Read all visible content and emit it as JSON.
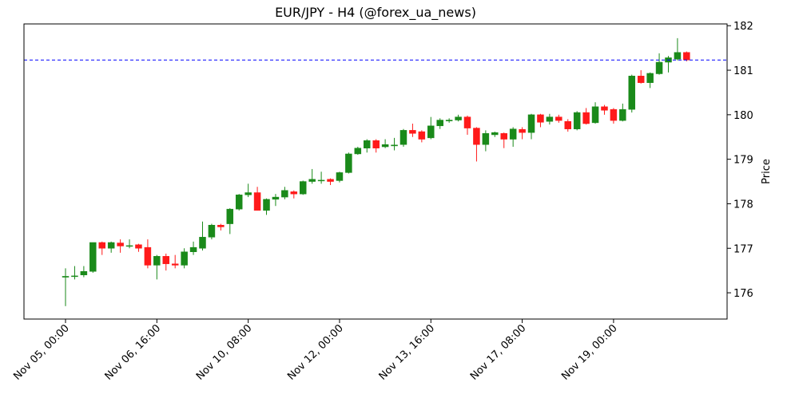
{
  "chart_data": {
    "type": "candlestick",
    "title": "EUR/JPY - H4 (@forex_ua_news)",
    "y_label": "Price",
    "categories": [
      "Nov 05, 00:00",
      null,
      null,
      null,
      null,
      null,
      null,
      null,
      null,
      null,
      "Nov 06, 16:00",
      null,
      null,
      null,
      null,
      null,
      null,
      null,
      null,
      null,
      "Nov 10, 08:00",
      null,
      null,
      null,
      null,
      null,
      null,
      null,
      null,
      null,
      "Nov 12, 00:00",
      null,
      null,
      null,
      null,
      null,
      null,
      null,
      null,
      null,
      "Nov 13, 16:00",
      null,
      null,
      null,
      null,
      null,
      null,
      null,
      null,
      null,
      "Nov 17, 08:00",
      null,
      null,
      null,
      null,
      null,
      null,
      null,
      null,
      null,
      "Nov 19, 00:00",
      null,
      null,
      null,
      null,
      null,
      null,
      null,
      null
    ],
    "open": [
      176.35,
      176.37,
      176.4,
      176.48,
      177.13,
      177.0,
      177.12,
      177.05,
      177.08,
      177.02,
      176.62,
      176.82,
      176.65,
      176.62,
      176.92,
      177.0,
      177.25,
      177.52,
      177.55,
      177.88,
      178.2,
      178.25,
      177.85,
      178.1,
      178.15,
      178.27,
      178.22,
      178.5,
      178.52,
      178.55,
      178.52,
      178.7,
      179.12,
      179.25,
      179.42,
      179.28,
      179.3,
      179.33,
      179.65,
      179.62,
      179.48,
      179.75,
      179.86,
      179.88,
      179.95,
      179.7,
      179.33,
      179.55,
      179.58,
      179.45,
      179.67,
      179.6,
      180.0,
      179.85,
      179.95,
      179.85,
      179.68,
      180.05,
      179.82,
      180.18,
      180.12,
      179.87,
      180.12,
      180.87,
      180.72,
      180.92,
      181.18,
      181.25,
      181.4
    ],
    "high": [
      176.55,
      176.6,
      176.6,
      177.13,
      177.15,
      177.15,
      177.2,
      177.2,
      177.1,
      177.2,
      176.85,
      176.88,
      176.85,
      177.0,
      177.15,
      177.6,
      177.55,
      177.55,
      177.9,
      178.22,
      178.45,
      178.38,
      178.12,
      178.22,
      178.38,
      178.3,
      178.52,
      178.78,
      178.72,
      178.57,
      178.72,
      179.15,
      179.28,
      179.45,
      179.45,
      179.45,
      179.48,
      179.68,
      179.8,
      179.65,
      179.95,
      179.92,
      179.92,
      180.0,
      179.98,
      179.72,
      179.65,
      179.62,
      179.6,
      179.72,
      179.72,
      180.02,
      180.02,
      180.02,
      180.0,
      179.9,
      180.08,
      180.15,
      180.28,
      180.22,
      180.15,
      180.25,
      180.9,
      181.0,
      180.95,
      181.38,
      181.32,
      181.72,
      181.42
    ],
    "low": [
      175.7,
      176.3,
      176.35,
      176.45,
      176.85,
      176.9,
      176.9,
      177.0,
      176.92,
      176.55,
      176.3,
      176.5,
      176.55,
      176.55,
      176.85,
      176.95,
      177.2,
      177.4,
      177.32,
      177.85,
      178.15,
      177.85,
      177.75,
      177.95,
      178.1,
      178.12,
      178.2,
      178.45,
      178.45,
      178.42,
      178.48,
      178.68,
      179.1,
      179.15,
      179.15,
      179.25,
      179.2,
      179.28,
      179.5,
      179.38,
      179.45,
      179.68,
      179.82,
      179.85,
      179.55,
      178.95,
      179.18,
      179.5,
      179.25,
      179.28,
      179.45,
      179.45,
      179.72,
      179.78,
      179.82,
      179.62,
      179.65,
      179.78,
      179.8,
      180.0,
      179.8,
      179.85,
      180.05,
      180.7,
      180.6,
      180.9,
      180.95,
      181.22,
      181.2
    ],
    "close": [
      176.37,
      176.38,
      176.48,
      177.13,
      177.0,
      177.13,
      177.05,
      177.06,
      177.0,
      176.62,
      176.82,
      176.65,
      176.62,
      176.92,
      177.02,
      177.25,
      177.52,
      177.48,
      177.88,
      178.2,
      178.25,
      177.85,
      178.1,
      178.15,
      178.3,
      178.22,
      178.5,
      178.55,
      178.53,
      178.5,
      178.7,
      179.12,
      179.25,
      179.42,
      179.25,
      179.33,
      179.32,
      179.65,
      179.58,
      179.45,
      179.75,
      179.88,
      179.88,
      179.95,
      179.7,
      179.33,
      179.58,
      179.6,
      179.45,
      179.68,
      179.6,
      180.0,
      179.83,
      179.95,
      179.87,
      179.68,
      180.05,
      179.8,
      180.18,
      180.1,
      179.87,
      180.12,
      180.87,
      180.72,
      180.93,
      181.18,
      181.28,
      181.4,
      181.23
    ],
    "up_color": "#1a8a1a",
    "down_color": "#ff1a1a",
    "hline": 181.23,
    "hline_color": "#0000ff",
    "xlim": [
      -4.55,
      72.43
    ],
    "ylim": [
      175.41,
      182.04
    ],
    "yticks": [
      176,
      177,
      178,
      179,
      180,
      181,
      182
    ]
  }
}
